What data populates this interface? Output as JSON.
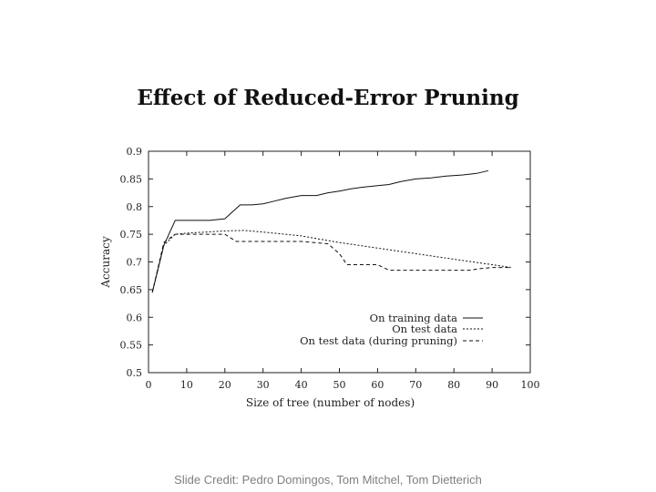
{
  "slide": {
    "credit": "Slide Credit: Pedro Domingos, Tom Mitchel, Tom Dietterich"
  },
  "chart_data": {
    "type": "line",
    "title": "Effect of Reduced-Error Pruning",
    "xlabel": "Size of tree (number of nodes)",
    "ylabel": "Accuracy",
    "xlim": [
      0,
      100
    ],
    "ylim": [
      0.5,
      0.9
    ],
    "xticks": [
      "0",
      "10",
      "20",
      "30",
      "40",
      "50",
      "60",
      "70",
      "80",
      "90",
      "100"
    ],
    "yticks": [
      "0.5",
      "0.55",
      "0.6",
      "0.65",
      "0.7",
      "0.75",
      "0.8",
      "0.85",
      "0.9"
    ],
    "legend_position": "bottom-right",
    "grid": false,
    "series": [
      {
        "name": "On training data",
        "style": "solid",
        "x": [
          1,
          4,
          7,
          10,
          13,
          16,
          20,
          24,
          27,
          30,
          33,
          36,
          40,
          44,
          47,
          50,
          53,
          56,
          60,
          63,
          66,
          70,
          74,
          78,
          82,
          86,
          89
        ],
        "y": [
          0.645,
          0.73,
          0.775,
          0.775,
          0.775,
          0.775,
          0.778,
          0.803,
          0.803,
          0.805,
          0.81,
          0.815,
          0.82,
          0.82,
          0.825,
          0.828,
          0.832,
          0.835,
          0.838,
          0.84,
          0.845,
          0.85,
          0.852,
          0.855,
          0.857,
          0.86,
          0.865
        ]
      },
      {
        "name": "On test data",
        "style": "dotted",
        "x": [
          1,
          4,
          7,
          10,
          15,
          20,
          25,
          30,
          40,
          50,
          60,
          70,
          80,
          90,
          95
        ],
        "y": [
          0.645,
          0.73,
          0.75,
          0.752,
          0.754,
          0.756,
          0.757,
          0.754,
          0.747,
          0.735,
          0.725,
          0.715,
          0.705,
          0.695,
          0.69
        ]
      },
      {
        "name": "On test data (during pruning)",
        "style": "dashed",
        "x": [
          1,
          4,
          7,
          10,
          20,
          23,
          30,
          40,
          47,
          50,
          52,
          56,
          60,
          63,
          70,
          80,
          84,
          87,
          90,
          95
        ],
        "y": [
          0.645,
          0.735,
          0.75,
          0.75,
          0.75,
          0.737,
          0.737,
          0.737,
          0.733,
          0.715,
          0.695,
          0.695,
          0.695,
          0.685,
          0.685,
          0.685,
          0.685,
          0.688,
          0.69,
          0.69
        ]
      }
    ]
  }
}
